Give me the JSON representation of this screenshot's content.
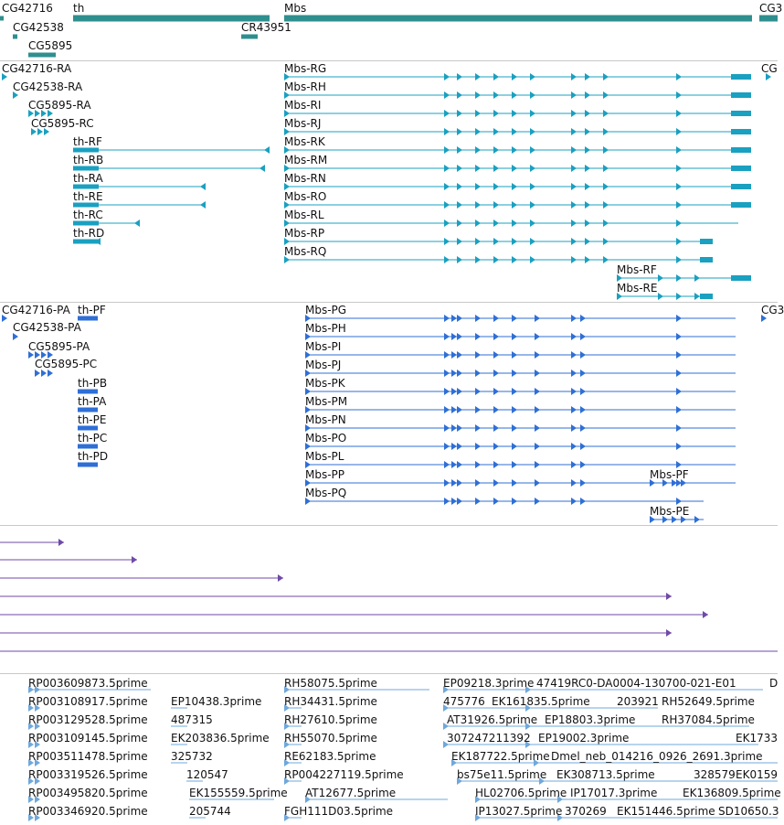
{
  "colors": {
    "gene": "#2f8f8f",
    "transcript": "#1aa0c0",
    "protein": "#2f6fd6",
    "align": "#6f4aa8",
    "est": "#6fa8dc",
    "separator": "#c8c8c8"
  },
  "gene_track": {
    "labels": {
      "cg42716": "CG42716",
      "th": "th",
      "mbs": "Mbs",
      "cg_right": "CG3",
      "cg42538": "CG42538",
      "cr43951": "CR43951",
      "cg5895": "CG5895"
    }
  },
  "transcript_track": {
    "labels": {
      "cg42716_ra": "CG42716-RA",
      "cg42538_ra": "CG42538-RA",
      "cg5895_ra": "CG5895-RA",
      "cg5895_rc": "CG5895-RC",
      "th_rf": "th-RF",
      "th_rb": "th-RB",
      "th_ra": "th-RA",
      "th_re": "th-RE",
      "th_rc": "th-RC",
      "th_rd": "th-RD",
      "mbs_rg": "Mbs-RG",
      "mbs_rh": "Mbs-RH",
      "mbs_ri": "Mbs-RI",
      "mbs_rj": "Mbs-RJ",
      "mbs_rk": "Mbs-RK",
      "mbs_rm": "Mbs-RM",
      "mbs_rn": "Mbs-RN",
      "mbs_ro": "Mbs-RO",
      "mbs_rl": "Mbs-RL",
      "mbs_rp": "Mbs-RP",
      "mbs_rq": "Mbs-RQ",
      "mbs_rf": "Mbs-RF",
      "mbs_re": "Mbs-RE",
      "cg_right": "CG"
    }
  },
  "protein_track": {
    "labels": {
      "cg42716_pa": "CG42716-PA",
      "th_pf": "th-PF",
      "cg42538_pa": "CG42538-PA",
      "cg5895_pa": "CG5895-PA",
      "cg5895_pc": "CG5895-PC",
      "th_pb": "th-PB",
      "th_pa": "th-PA",
      "th_pe": "th-PE",
      "th_pc": "th-PC",
      "th_pd": "th-PD",
      "mbs_pg": "Mbs-PG",
      "mbs_ph": "Mbs-PH",
      "mbs_pi": "Mbs-PI",
      "mbs_pj": "Mbs-PJ",
      "mbs_pk": "Mbs-PK",
      "mbs_pm": "Mbs-PM",
      "mbs_pn": "Mbs-PN",
      "mbs_po": "Mbs-PO",
      "mbs_pl": "Mbs-PL",
      "mbs_pp": "Mbs-PP",
      "mbs_pq": "Mbs-PQ",
      "mbs_pf": "Mbs-PF",
      "mbs_pe": "Mbs-PE",
      "cg_right": "CG3"
    }
  },
  "est_track": {
    "labels": {
      "e01": "RP003609873.5prime",
      "e02": "RP003108917.5prime",
      "e03": "RP003129528.5prime",
      "e04": "RP003109145.5prime",
      "e05": "RP003511478.5prime",
      "e06": "RP003319526.5prime",
      "e07": "RP003495820.5prime",
      "e08": "RP003346920.5prime",
      "e09": "EP10438.3prime",
      "e10": "487315",
      "e11": "EK203836.5prime",
      "e12": "325732",
      "e13": "120547",
      "e14": "EK155559.5prime",
      "e15": "205744",
      "e16": "RH58075.5prime",
      "e17": "RH34431.5prime",
      "e18": "RH27610.5prime",
      "e19": "RH55070.5prime",
      "e20": "RE62183.5prime",
      "e21": "RP004227119.5prime",
      "e22": "AT12677.5prime",
      "e23": "FGH111D03.5prime",
      "e24": "EP09218.3prime",
      "e25": "47419RC0-DA0004-130700-021-E01",
      "e26": "D",
      "e27": "475776",
      "e28": "EK161835.5prime",
      "e29": "203921",
      "e30": "RH52649.5prime",
      "e31": "AT31926.5prime",
      "e32": "EP18803.3prime",
      "e33": "RH37084.5prime",
      "e34": "307247211392",
      "e35": "EP19002.3prime",
      "e36": "EK1733",
      "e37": "EK187722.5prime",
      "e38": "Dmel_neb_014216_0926_2691.3prime",
      "e39": "bs75e11.5prime",
      "e40": "EK308713.5prime",
      "e41": "328579",
      "e42": "EK0159",
      "e43": "HL02706.5prime",
      "e44": "IP17017.3prime",
      "e45": "EK136809.5prime",
      "e46": "IP13027.5prime",
      "e47": "370269",
      "e48": "EK151446.5prime",
      "e49": "SD10650.3"
    }
  }
}
